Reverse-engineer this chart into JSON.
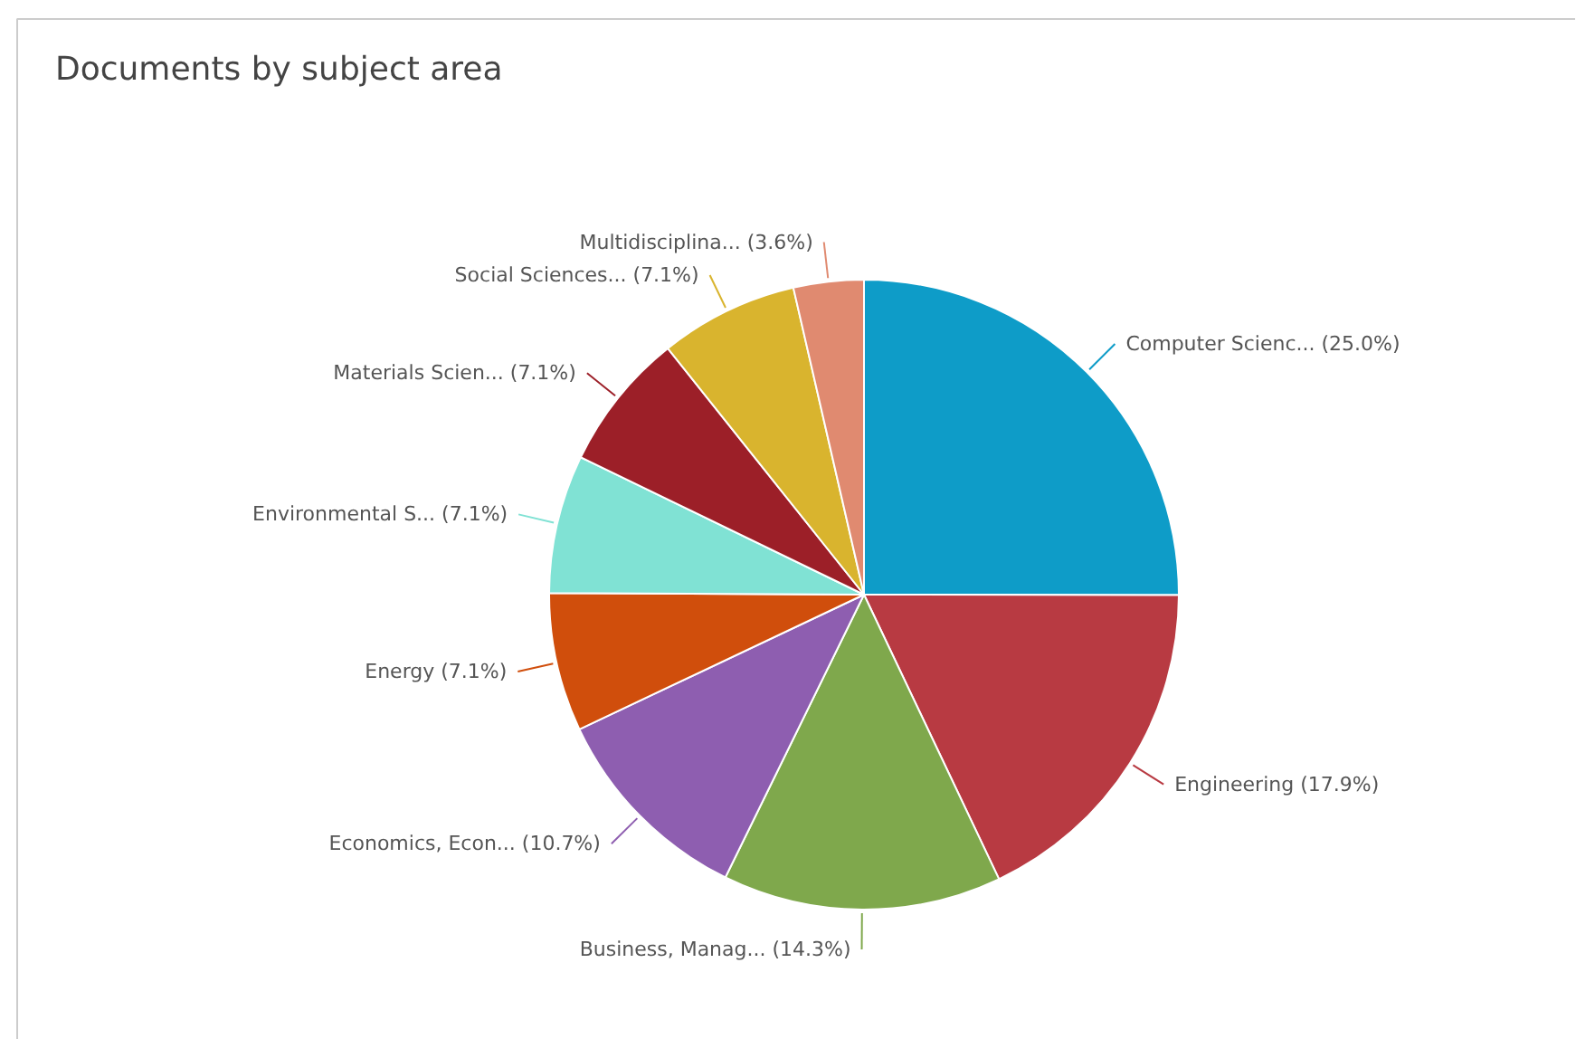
{
  "chart_data": {
    "type": "pie",
    "title": "Documents by subject area",
    "categories": [
      "Computer Scienc...",
      "Engineering",
      "Business, Manag...",
      "Economics, Econ...",
      "Energy",
      "Environmental S...",
      "Materials Scien...",
      "Social Sciences...",
      "Multidisciplina..."
    ],
    "values": [
      25.0,
      17.9,
      14.3,
      10.7,
      7.1,
      7.1,
      7.1,
      7.1,
      3.6
    ],
    "value_labels": [
      "(25.0%)",
      "(17.9%)",
      "(14.3%)",
      "(10.7%)",
      "(7.1%)",
      "(7.1%)",
      "(7.1%)",
      "(7.1%)",
      "(3.6%)"
    ],
    "colors": [
      "#0e9cc8",
      "#b83a42",
      "#7fa84c",
      "#8e5eb0",
      "#d04e0c",
      "#80e2d4",
      "#9c1f28",
      "#d9b42e",
      "#e08a70"
    ],
    "legend": false
  }
}
